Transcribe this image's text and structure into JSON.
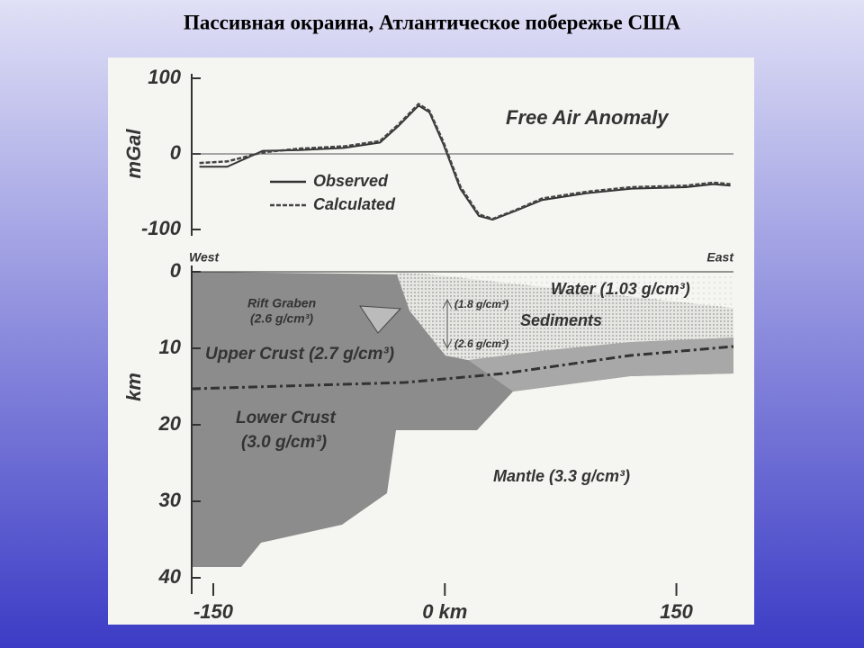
{
  "title": "Пассивная окраина, Атлантическое побережье США",
  "chart_data": [
    {
      "type": "line",
      "title": "Free Air Anomaly",
      "ylabel": "mGal",
      "xlim": [
        -164,
        187
      ],
      "ylim": [
        -100,
        100
      ],
      "yticks": [
        -100,
        0,
        100
      ],
      "x": [
        -159,
        -141,
        -118,
        -94,
        -65,
        -42,
        -30,
        -17,
        -10,
        -1,
        10,
        22,
        31,
        45,
        63,
        92,
        121,
        156,
        174,
        185
      ],
      "series": [
        {
          "name": "Observed",
          "color": "#333333",
          "dash": false,
          "values": [
            -17,
            -17,
            4,
            5,
            8,
            15,
            37,
            64,
            55,
            13,
            -46,
            -82,
            -87,
            -76,
            -61,
            -52,
            -46,
            -44,
            -40,
            -42
          ]
        },
        {
          "name": "Calculated",
          "color": "#444444",
          "dash": true,
          "values": [
            -12,
            -10,
            2,
            7,
            10,
            17,
            39,
            66,
            57,
            16,
            -43,
            -80,
            -86,
            -75,
            -59,
            -50,
            -44,
            -42,
            -38,
            -40
          ]
        }
      ]
    },
    {
      "type": "cross-section",
      "ylabel": "km",
      "xlim": [
        -164,
        187
      ],
      "ylim": [
        0,
        40
      ],
      "yticks": [
        0,
        10,
        20,
        30,
        40
      ],
      "xticks": [
        -150,
        {
          "value": 0,
          "label": "0 km"
        },
        150
      ],
      "labels": {
        "west": "West",
        "east": "East",
        "water": "Water (1.03 g/cm³)",
        "sediments": "Sediments",
        "rift": "Rift Graben",
        "rift_density": "(2.6 g/cm³)",
        "sed_upper": "(1.8 g/cm³)",
        "sed_lower": "(2.6 g/cm³)",
        "upper_crust": "Upper Crust (2.7 g/cm³)",
        "lower_crust": "Lower Crust",
        "lower_density": "(3.0 g/cm³)",
        "mantle": "Mantle (3.3 g/cm³)"
      }
    }
  ]
}
